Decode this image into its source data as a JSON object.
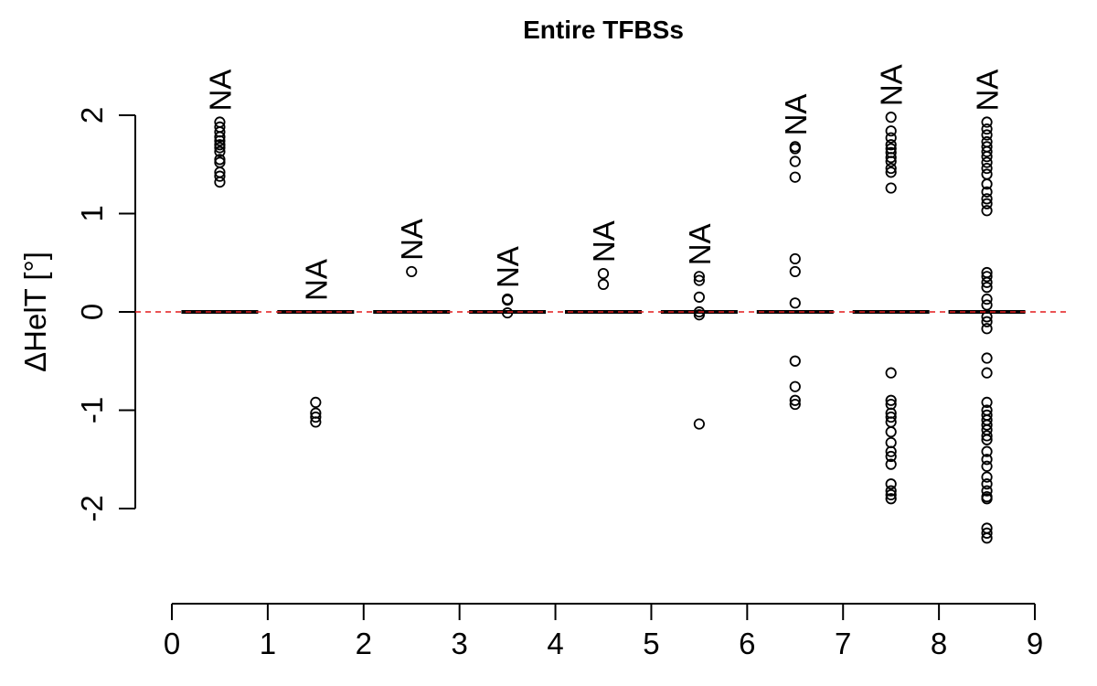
{
  "chart_data": {
    "type": "boxplot",
    "title": "Entire TFBSs",
    "xlabel": "",
    "ylabel": "ΔHelT [°]",
    "xlim": [
      0,
      9
    ],
    "ylim": [
      -2.3,
      2.0
    ],
    "x_ticks": [
      "0",
      "1",
      "2",
      "3",
      "4",
      "5",
      "6",
      "7",
      "8",
      "9"
    ],
    "y_ticks": [
      "-2",
      "-1",
      "0",
      "1",
      "2"
    ],
    "reference_line": {
      "y": 0,
      "color": "#e41a1c",
      "style": "dashed"
    },
    "groups": [
      {
        "position": 0.5,
        "median": 0,
        "annotation": "NA",
        "outliers": [
          1.93,
          1.88,
          1.83,
          1.78,
          1.74,
          1.7,
          1.67,
          1.63,
          1.55,
          1.52,
          1.42,
          1.38,
          1.32
        ]
      },
      {
        "position": 1.5,
        "median": 0,
        "annotation": "NA",
        "outliers": [
          -0.92,
          -1.03,
          -1.07,
          -1.12
        ]
      },
      {
        "position": 2.5,
        "median": 0,
        "annotation": "NA",
        "outliers": [
          0.41
        ]
      },
      {
        "position": 3.5,
        "median": 0,
        "annotation": "NA",
        "outliers": [
          0.13,
          0.12,
          -0.01
        ]
      },
      {
        "position": 4.5,
        "median": 0,
        "annotation": "NA",
        "outliers": [
          0.39,
          0.28
        ]
      },
      {
        "position": 5.5,
        "median": 0,
        "annotation": "NA",
        "outliers": [
          0.36,
          0.32,
          0.15,
          0.0,
          -0.03,
          -1.14
        ]
      },
      {
        "position": 6.5,
        "median": 0,
        "annotation": "NA",
        "outliers": [
          1.68,
          1.66,
          1.53,
          1.37,
          0.54,
          0.41,
          0.09,
          -0.5,
          -0.76,
          -0.9,
          -0.94
        ]
      },
      {
        "position": 7.5,
        "median": 0,
        "annotation": "NA",
        "outliers": [
          1.98,
          1.84,
          1.77,
          1.7,
          1.66,
          1.62,
          1.57,
          1.53,
          1.46,
          1.42,
          1.26,
          -0.62,
          -0.9,
          -0.94,
          -1.03,
          -1.07,
          -1.12,
          -1.22,
          -1.33,
          -1.42,
          -1.47,
          -1.55,
          -1.75,
          -1.82,
          -1.86,
          -1.9
        ]
      },
      {
        "position": 8.5,
        "median": 0,
        "annotation": "NA",
        "outliers": [
          1.93,
          1.86,
          1.8,
          1.73,
          1.68,
          1.63,
          1.58,
          1.52,
          1.46,
          1.4,
          1.3,
          1.22,
          1.15,
          1.1,
          1.03,
          0.4,
          0.36,
          0.3,
          0.25,
          0.13,
          0.07,
          -0.05,
          -0.1,
          -0.17,
          -0.47,
          -0.62,
          -0.92,
          -1.0,
          -1.05,
          -1.1,
          -1.15,
          -1.2,
          -1.26,
          -1.3,
          -1.42,
          -1.5,
          -1.57,
          -1.68,
          -1.75,
          -1.82,
          -1.88,
          -1.9,
          -2.2,
          -2.25,
          -2.3
        ]
      }
    ]
  }
}
